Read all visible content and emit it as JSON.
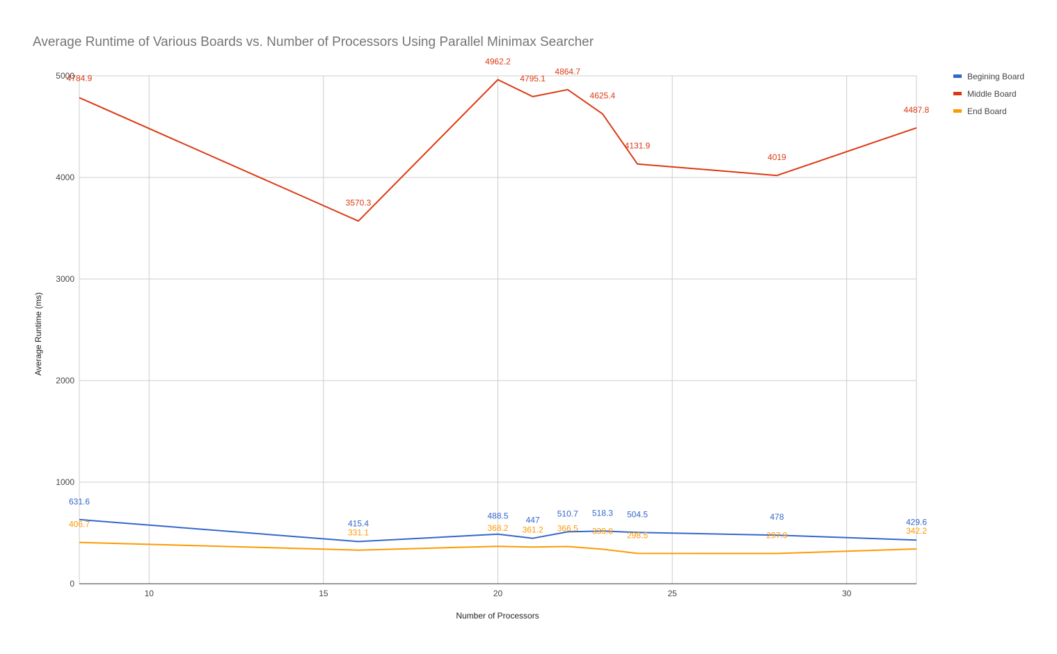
{
  "chart_data": {
    "type": "line",
    "title": "Average Runtime of Various Boards vs. Number of Processors Using Parallel Minimax Searcher",
    "xlabel": "Number of Processors",
    "ylabel": "Average Runtime (ms)",
    "xlim": [
      8,
      32
    ],
    "ylim": [
      0,
      5000
    ],
    "xticks": [
      10,
      15,
      20,
      25,
      30
    ],
    "yticks": [
      0,
      1000,
      2000,
      3000,
      4000,
      5000
    ],
    "grid": true,
    "legend_position": "right",
    "x": [
      8,
      16,
      20,
      21,
      22,
      23,
      24,
      28,
      32
    ],
    "series": [
      {
        "name": "Begining Board",
        "color": "#3366cc",
        "values": [
          631.6,
          415.4,
          488.5,
          447,
          510.7,
          518.3,
          504.5,
          478,
          429.6
        ],
        "labels": [
          "631.6",
          "415.4",
          "488.5",
          "447",
          "510.7",
          "518.3",
          "504.5",
          "478",
          "429.6"
        ]
      },
      {
        "name": "Middle Board",
        "color": "#dc3912",
        "values": [
          4784.9,
          3570.3,
          4962.2,
          4795.1,
          4864.7,
          4625.4,
          4131.9,
          4019,
          4487.8
        ],
        "labels": [
          "4784.9",
          "3570.3",
          "4962.2",
          "4795.1",
          "4864.7",
          "4625.4",
          "4131.9",
          "4019",
          "4487.8"
        ]
      },
      {
        "name": "End Board",
        "color": "#ff9900",
        "values": [
          406.7,
          331.1,
          368.2,
          361.2,
          366.5,
          339.8,
          298.5,
          297.9,
          342.2
        ],
        "labels": [
          "406.7",
          "331.1",
          "368.2",
          "361.2",
          "366.5",
          "339.8",
          "298.5",
          "297.9",
          "342.2"
        ]
      }
    ]
  }
}
